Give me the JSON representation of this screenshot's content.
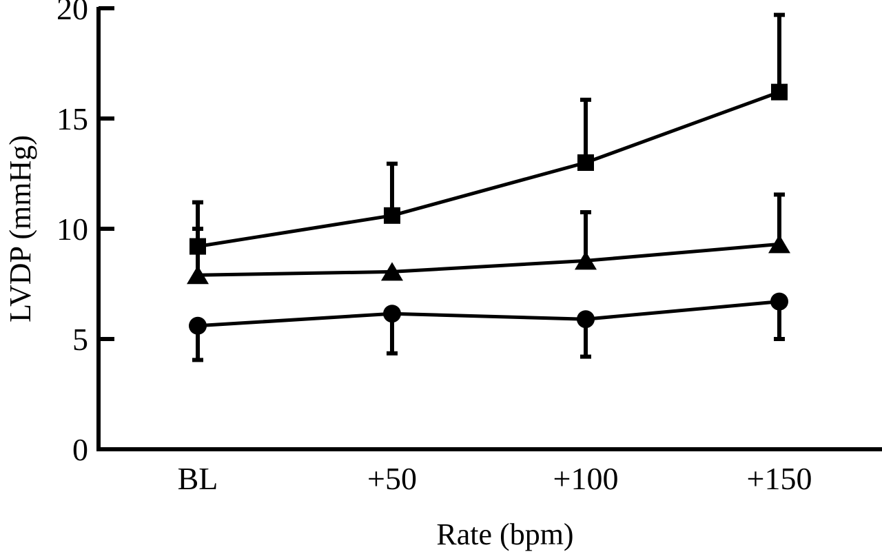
{
  "chart_data": {
    "type": "line",
    "title": "",
    "xlabel": "Rate (bpm)",
    "ylabel": "LVDP (mmHg)",
    "categories": [
      "BL",
      "+50",
      "+100",
      "+150"
    ],
    "ylim": [
      0,
      20
    ],
    "yticks": [
      "0",
      "5",
      "10",
      "15",
      "20"
    ],
    "grid": false,
    "legend": "none",
    "series": [
      {
        "name": "square",
        "marker": "square",
        "values": [
          9.2,
          10.6,
          13.0,
          16.2
        ],
        "error_upper": [
          11.2,
          12.95,
          15.85,
          19.7
        ],
        "error_lower": [
          null,
          null,
          null,
          null
        ]
      },
      {
        "name": "triangle",
        "marker": "triangle",
        "values": [
          7.9,
          8.05,
          8.55,
          9.3
        ],
        "error_upper": [
          10.0,
          null,
          10.75,
          11.55
        ],
        "error_lower": [
          null,
          null,
          null,
          null
        ]
      },
      {
        "name": "circle",
        "marker": "circle",
        "values": [
          5.6,
          6.15,
          5.9,
          6.7
        ],
        "error_upper": [
          null,
          null,
          null,
          null
        ],
        "error_lower": [
          4.05,
          4.35,
          4.2,
          5.0
        ]
      }
    ],
    "colors": {
      "ink": "#000000",
      "background": "#ffffff"
    }
  }
}
